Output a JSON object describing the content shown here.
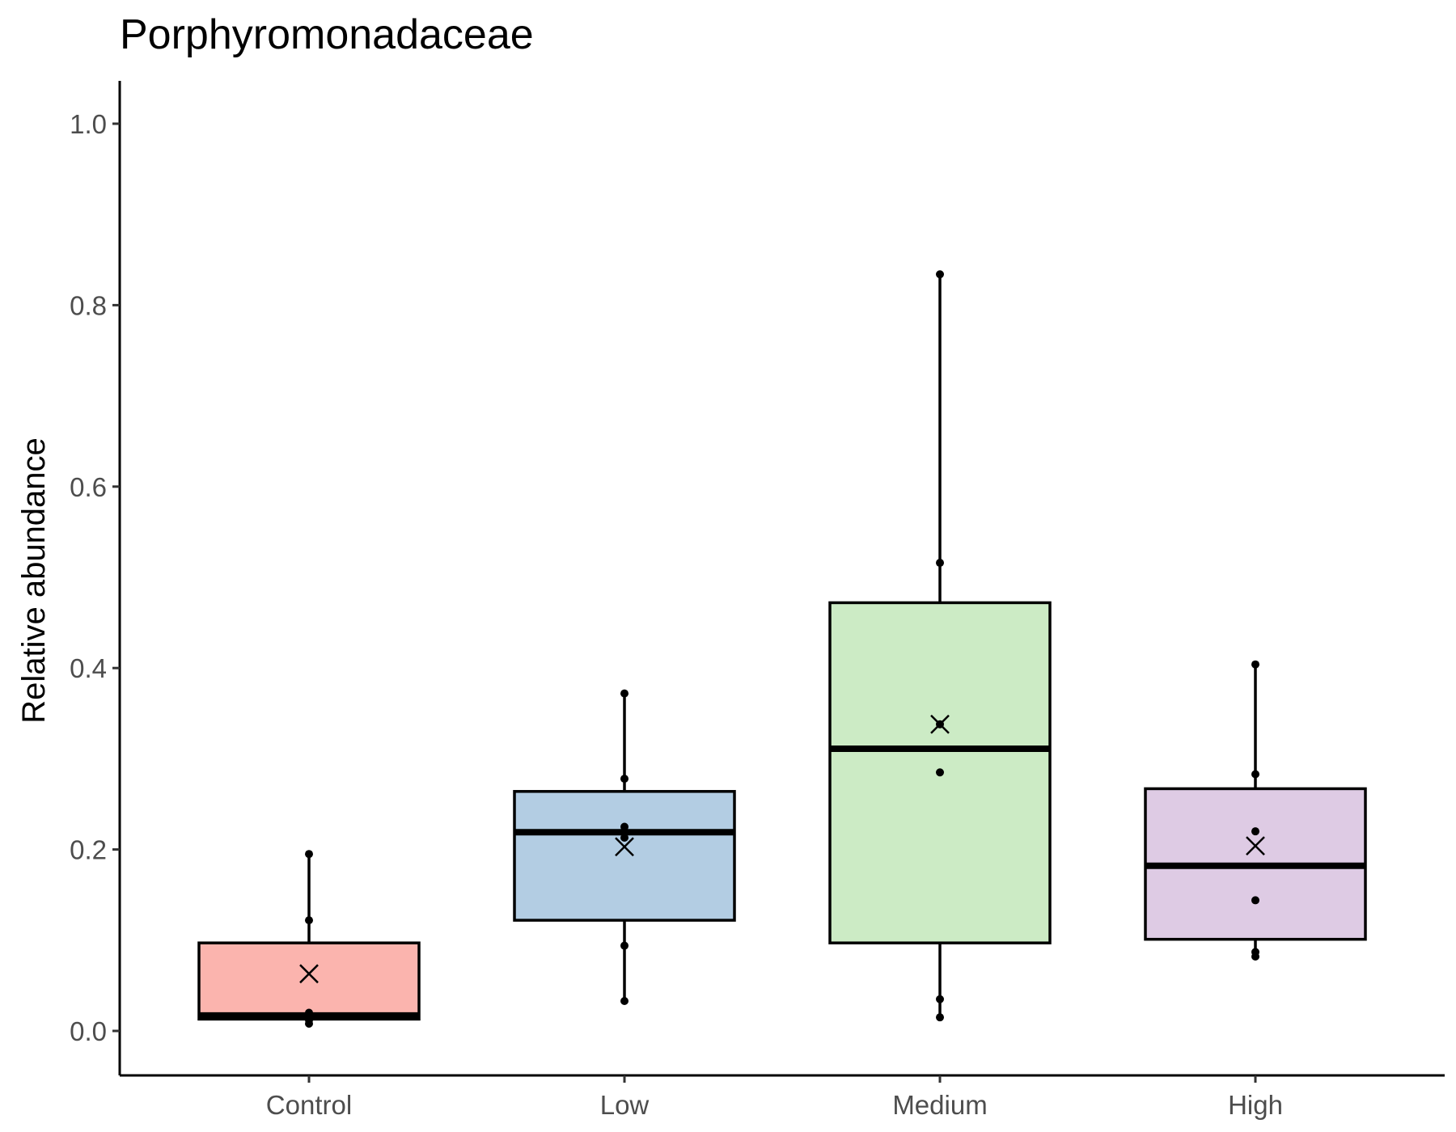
{
  "chart_data": {
    "type": "box",
    "title": "Porphyromonadaceae",
    "xlabel": "",
    "ylabel": "Relative abundance",
    "ylim": [
      -0.05,
      1.05
    ],
    "yticks": [
      0.0,
      0.2,
      0.4,
      0.6,
      0.8,
      1.0
    ],
    "ytick_labels": [
      "0.0",
      "0.2",
      "0.4",
      "0.6",
      "0.8",
      "1.0"
    ],
    "grid": false,
    "legend": "none",
    "categories": [
      "Control",
      "Low",
      "Medium",
      "High"
    ],
    "boxes": [
      {
        "category": "Control",
        "fill": "#FBB4AE",
        "whisker_low": 0.008,
        "q1": 0.013,
        "median": 0.017,
        "q3": 0.097,
        "whisker_high": 0.195,
        "mean": 0.063,
        "points": [
          0.008,
          0.012,
          0.016,
          0.02,
          0.122,
          0.195
        ]
      },
      {
        "category": "Low",
        "fill": "#B3CDE3",
        "whisker_low": 0.033,
        "q1": 0.122,
        "median": 0.219,
        "q3": 0.264,
        "whisker_high": 0.372,
        "mean": 0.203,
        "points": [
          0.033,
          0.094,
          0.213,
          0.225,
          0.278,
          0.372
        ]
      },
      {
        "category": "Medium",
        "fill": "#CCEBC5",
        "whisker_low": 0.015,
        "q1": 0.097,
        "median": 0.311,
        "q3": 0.472,
        "whisker_high": 0.834,
        "mean": 0.338,
        "points": [
          0.015,
          0.035,
          0.285,
          0.338,
          0.516,
          0.834
        ]
      },
      {
        "category": "High",
        "fill": "#DECBE4",
        "whisker_low": 0.082,
        "q1": 0.101,
        "median": 0.182,
        "q3": 0.267,
        "whisker_high": 0.404,
        "mean": 0.204,
        "points": [
          0.082,
          0.087,
          0.144,
          0.22,
          0.283,
          0.404
        ]
      }
    ]
  }
}
